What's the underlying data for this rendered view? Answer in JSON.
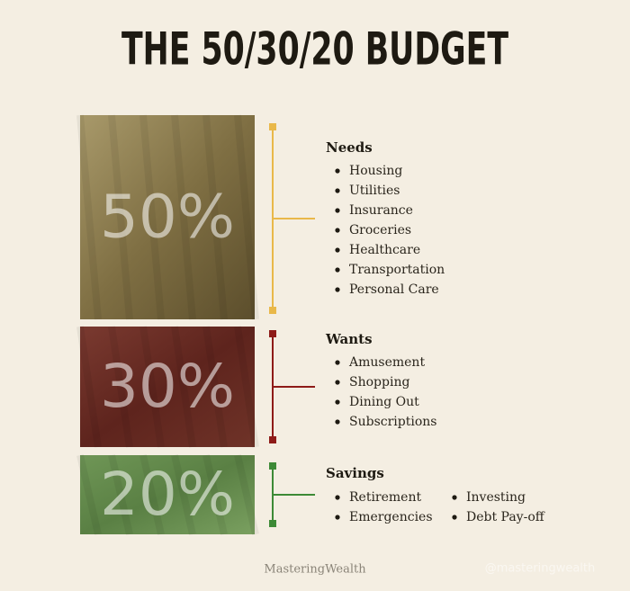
{
  "title": "THE 50/30/20 BUDGET",
  "sections": [
    {
      "percent": "50%",
      "heading": "Needs",
      "items": [
        "Housing",
        "Utilities",
        "Insurance",
        "Groceries",
        "Healthcare",
        "Transportation",
        "Personal Care"
      ]
    },
    {
      "percent": "30%",
      "heading": "Wants",
      "items": [
        "Amusement",
        "Shopping",
        "Dining Out",
        "Subscriptions"
      ]
    },
    {
      "percent": "20%",
      "heading": "Savings",
      "items": [
        "Retirement",
        "Emergencies",
        "Investing",
        "Debt Pay-off"
      ]
    }
  ],
  "footer": "MasteringWealth",
  "watermark": "@masteringwealth"
}
